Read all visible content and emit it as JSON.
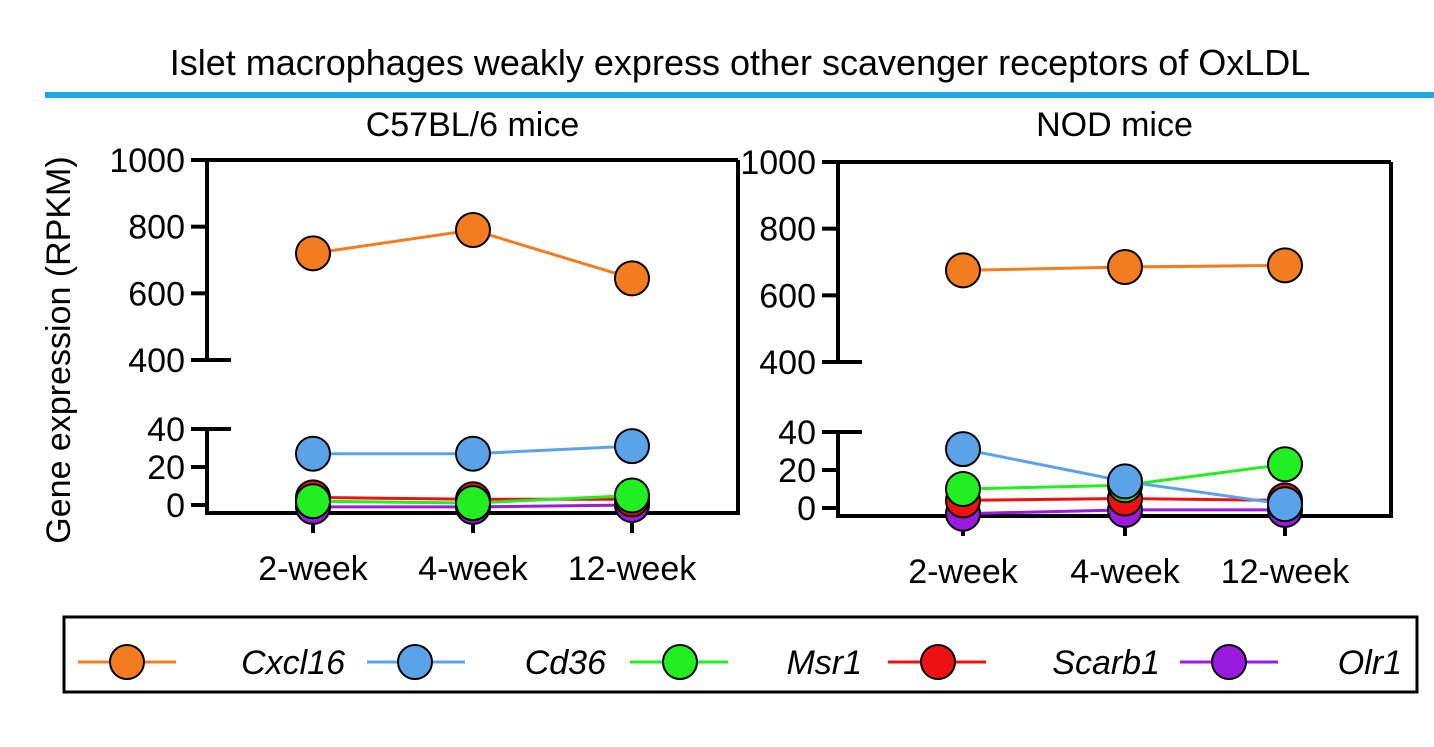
{
  "figure": {
    "title": "Islet macrophages weakly express other scavenger receptors of OxLDL",
    "accent_color": "#1ea7e1"
  },
  "chart_data": [
    {
      "type": "line",
      "title": "C57BL/6 mice",
      "ylabel": "Gene expression (RPKM)",
      "categories": [
        "2-week",
        "4-week",
        "12-week"
      ],
      "y_axis_broken": true,
      "y_segments": [
        {
          "range": [
            0,
            40
          ],
          "ticks": [
            "0",
            "20",
            "40"
          ]
        },
        {
          "range": [
            400,
            1000
          ],
          "ticks": [
            "400",
            "600",
            "800",
            "1000"
          ]
        }
      ],
      "series": [
        {
          "name": "Cxcl16",
          "color": "#f47c20",
          "values": [
            720,
            790,
            645
          ]
        },
        {
          "name": "Cd36",
          "color": "#5ba3e8",
          "values": [
            27,
            27,
            31
          ]
        },
        {
          "name": "Msr1",
          "color": "#22ee22",
          "values": [
            2,
            1,
            5
          ]
        },
        {
          "name": "Scarb1",
          "color": "#ee1111",
          "values": [
            4,
            3,
            3
          ]
        },
        {
          "name": "Olr1",
          "color": "#9a1ae0",
          "values": [
            -1,
            -1,
            0
          ]
        }
      ]
    },
    {
      "type": "line",
      "title": "NOD mice",
      "ylabel": "Gene expression (RPKM)",
      "categories": [
        "2-week",
        "4-week",
        "12-week"
      ],
      "y_axis_broken": true,
      "y_segments": [
        {
          "range": [
            0,
            40
          ],
          "ticks": [
            "0",
            "20",
            "40"
          ]
        },
        {
          "range": [
            400,
            1000
          ],
          "ticks": [
            "400",
            "600",
            "800",
            "1000"
          ]
        }
      ],
      "series": [
        {
          "name": "Cxcl16",
          "color": "#f47c20",
          "values": [
            675,
            685,
            690
          ]
        },
        {
          "name": "Cd36",
          "color": "#5ba3e8",
          "values": [
            31,
            14,
            2
          ]
        },
        {
          "name": "Msr1",
          "color": "#22ee22",
          "values": [
            10,
            12,
            23
          ]
        },
        {
          "name": "Scarb1",
          "color": "#ee1111",
          "values": [
            4,
            5,
            4
          ]
        },
        {
          "name": "Olr1",
          "color": "#9a1ae0",
          "values": [
            -3,
            -1,
            -1
          ]
        }
      ]
    }
  ],
  "legend": {
    "entries": [
      {
        "label": "Cxcl16",
        "color": "#f47c20"
      },
      {
        "label": "Cd36",
        "color": "#5ba3e8"
      },
      {
        "label": "Msr1",
        "color": "#22ee22"
      },
      {
        "label": "Scarb1",
        "color": "#ee1111"
      },
      {
        "label": "Olr1",
        "color": "#9a1ae0"
      }
    ]
  }
}
